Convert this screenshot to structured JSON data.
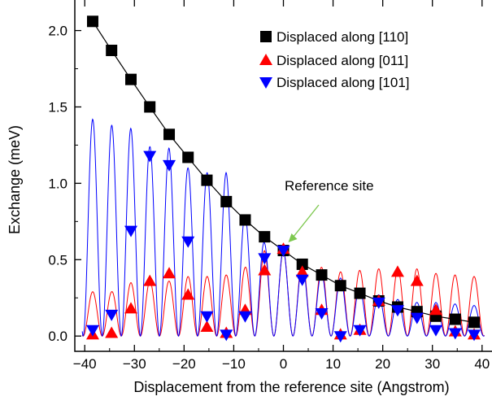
{
  "chart_data": {
    "type": "scatter",
    "xlabel": "Displacement from the reference site (Angstrom)",
    "ylabel": "Exchange (meV)",
    "xlim": [
      -42,
      42
    ],
    "ylim": [
      -0.1,
      2.2
    ],
    "x_ticks": [
      -40,
      -30,
      -20,
      -10,
      0,
      10,
      20,
      30,
      40
    ],
    "x_tick_labels": [
      "−40",
      "−30",
      "−20",
      "−10",
      "0",
      "10",
      "20",
      "30",
      "40"
    ],
    "y_ticks": [
      0.0,
      0.5,
      1.0,
      1.5,
      2.0
    ],
    "y_tick_labels": [
      "0.0",
      "0.5",
      "1.0",
      "1.5",
      "2.0"
    ],
    "grid": false,
    "legend_position": "top-right",
    "series": [
      {
        "name": "Displaced along [110]",
        "marker": "square",
        "color": "#000000",
        "connected": true,
        "x": [
          -38.4,
          -34.6,
          -30.7,
          -26.9,
          -23.0,
          -19.2,
          -15.4,
          -11.5,
          -7.7,
          -3.8,
          0.0,
          3.8,
          7.7,
          11.5,
          15.4,
          19.2,
          23.0,
          26.9,
          30.7,
          34.6,
          38.4
        ],
        "y": [
          2.06,
          1.87,
          1.68,
          1.5,
          1.32,
          1.17,
          1.02,
          0.88,
          0.76,
          0.65,
          0.56,
          0.47,
          0.4,
          0.33,
          0.28,
          0.23,
          0.19,
          0.16,
          0.13,
          0.11,
          0.09
        ]
      },
      {
        "name": "Displaced along [011]",
        "marker": "triangle-up",
        "color": "#ff0000",
        "x": [
          -38.4,
          -34.6,
          -30.7,
          -26.9,
          -23.0,
          -19.2,
          -15.4,
          -11.5,
          -7.7,
          -3.8,
          0.0,
          3.8,
          7.7,
          11.5,
          15.4,
          19.2,
          23.0,
          26.9,
          30.7,
          34.6,
          38.4
        ],
        "y": [
          0.01,
          0.02,
          0.18,
          0.36,
          0.41,
          0.27,
          0.06,
          0.02,
          0.17,
          0.43,
          0.57,
          0.42,
          0.17,
          0.01,
          0.04,
          0.23,
          0.42,
          0.36,
          0.17,
          0.03,
          0.01
        ]
      },
      {
        "name": "Displaced along [101]",
        "marker": "triangle-down",
        "color": "#0000ff",
        "x": [
          -38.4,
          -34.6,
          -30.7,
          -26.9,
          -23.0,
          -19.2,
          -15.4,
          -11.5,
          -7.7,
          -3.8,
          0.0,
          3.8,
          7.7,
          11.5,
          15.4,
          19.2,
          23.0,
          26.9,
          30.7,
          34.6,
          38.4
        ],
        "y": [
          0.04,
          0.14,
          0.69,
          1.18,
          1.12,
          0.62,
          0.13,
          0.01,
          0.13,
          0.51,
          0.56,
          0.37,
          0.15,
          0.0,
          0.04,
          0.22,
          0.17,
          0.12,
          0.04,
          0.02,
          0.01
        ]
      }
    ],
    "curves": [
      {
        "color": "#ff0000",
        "description_of": "Displaced along [011]",
        "period": 3.84,
        "peaks": [
          0.29,
          0.29,
          0.35,
          0.36,
          0.36,
          0.39,
          0.39,
          0.4,
          0.45,
          0.56,
          0.56,
          0.5,
          0.45,
          0.42,
          0.43,
          0.44,
          0.44,
          0.44,
          0.41,
          0.4,
          0.39
        ]
      },
      {
        "color": "#0000ff",
        "description_of": "Displaced along [101]",
        "period": 3.84,
        "peaks": [
          1.42,
          1.38,
          1.36,
          1.24,
          1.23,
          1.1,
          1.07,
          1.07,
          0.79,
          0.61,
          0.56,
          0.47,
          0.41,
          0.38,
          0.31,
          0.27,
          0.24,
          0.22,
          0.22,
          0.21,
          0.2
        ]
      }
    ],
    "annotation": {
      "text": "Reference site",
      "x": 0.0,
      "y": 0.56,
      "arrow_color": "#7ec850"
    }
  }
}
